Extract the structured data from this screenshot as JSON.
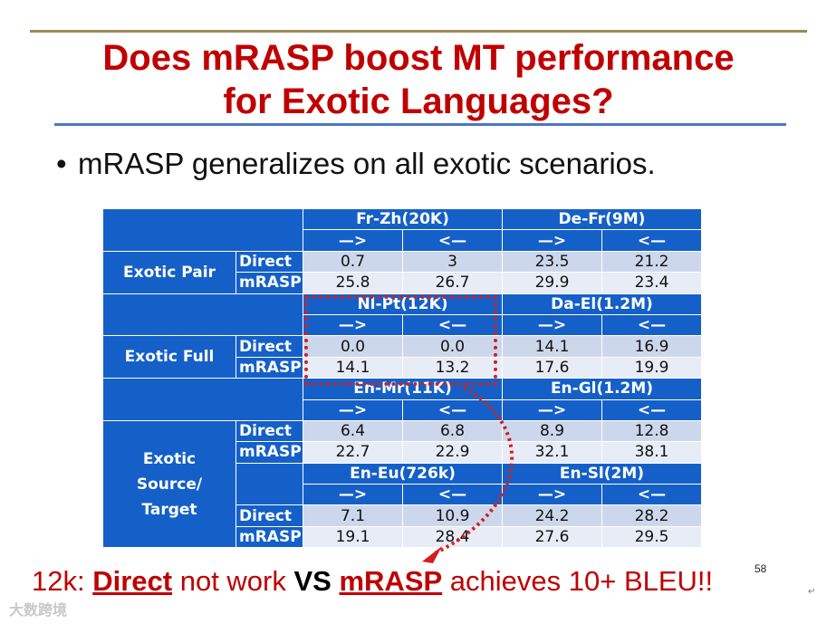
{
  "slide": {
    "title_line1": "Does mRASP boost MT performance",
    "title_line2": "for Exotic Languages?",
    "bullet": "mRASP generalizes on all exotic scenarios.",
    "slide_number": "58",
    "watermark": "大数跨境",
    "colors": {
      "title": "#c00000",
      "table_header": "#1560c8",
      "highlight": "#d22020"
    }
  },
  "table": {
    "fwd": "—>",
    "bwd": "<—",
    "direct_label": "Direct",
    "mrasp_label": "mRASP",
    "groups": {
      "exotic_pair": "Exotic Pair",
      "exotic_full": "Exotic Full",
      "exotic_source_target": "Exotic Source/ Target"
    },
    "pairs": [
      "Fr-Zh(20K)",
      "De-Fr(9M)",
      "Nl-Pt(12K)",
      "Da-El(1.2M)",
      "En-Mr(11K)",
      "En-Gl(1.2M)",
      "En-Eu(726k)",
      "En-Sl(2M)"
    ],
    "blocks": [
      {
        "direct": [
          "0.7",
          "3",
          "23.5",
          "21.2"
        ],
        "mrasp": [
          "25.8",
          "26.7",
          "29.9",
          "23.4"
        ]
      },
      {
        "direct": [
          "0.0",
          "0.0",
          "14.1",
          "16.9"
        ],
        "mrasp": [
          "14.1",
          "13.2",
          "17.6",
          "19.9"
        ]
      },
      {
        "direct": [
          "6.4",
          "6.8",
          "8.9",
          "12.8"
        ],
        "mrasp": [
          "22.7",
          "22.9",
          "32.1",
          "38.1"
        ]
      },
      {
        "direct": [
          "7.1",
          "10.9",
          "24.2",
          "28.2"
        ],
        "mrasp": [
          "19.1",
          "28.4",
          "27.6",
          "29.5"
        ]
      }
    ]
  },
  "conclusion": {
    "prefix": "12k: ",
    "direct": "Direct",
    "mid": " not work ",
    "vs": "VS",
    "mrasp": "mRASP",
    "suffix": " achieves 10+ BLEU!!"
  }
}
